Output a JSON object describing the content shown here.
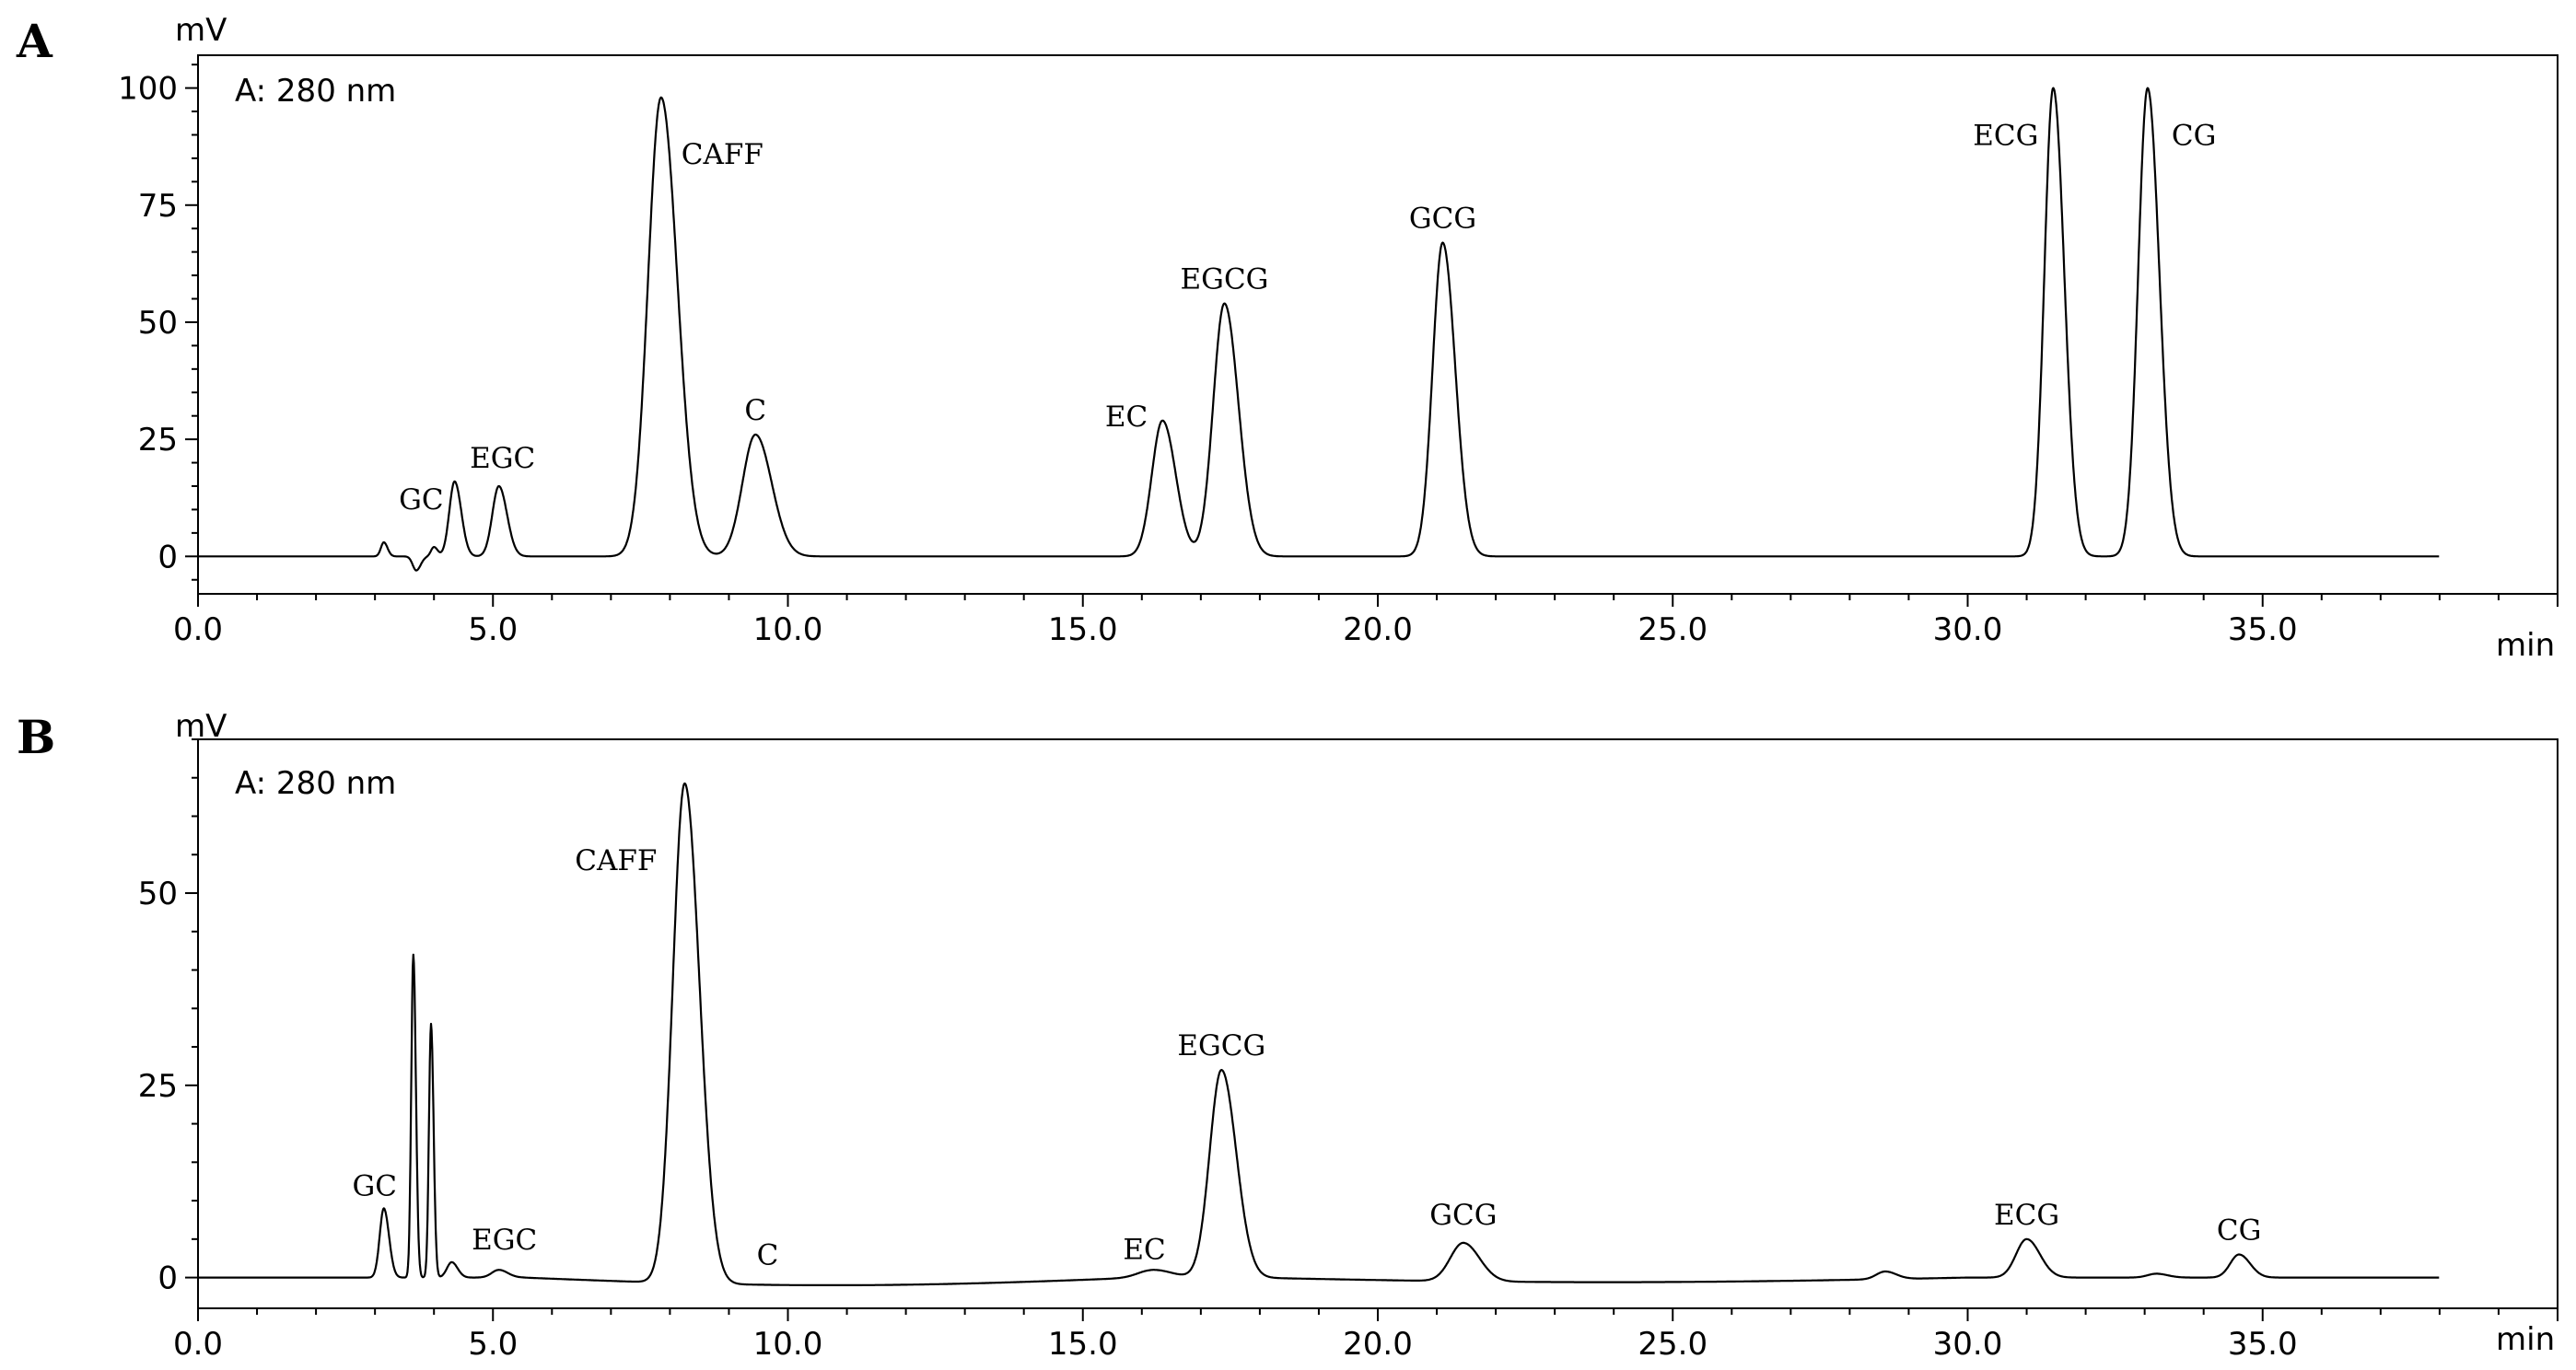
{
  "chart_data": [
    {
      "type": "line",
      "panel": "A",
      "wavelength_label": "A: 280 nm",
      "ylabel": "mV",
      "xlabel": "min",
      "xlim": [
        0,
        40
      ],
      "ylim": [
        -8,
        107
      ],
      "x_ticks": [
        "0.0",
        "5.0",
        "10.0",
        "15.0",
        "20.0",
        "25.0",
        "30.0",
        "35.0"
      ],
      "y_ticks": [
        "0",
        "25",
        "50",
        "75",
        "100"
      ],
      "baseline": 0,
      "peaks": [
        {
          "label": "",
          "x": 3.15,
          "height": 3,
          "width": 0.05
        },
        {
          "label": "",
          "x": 3.7,
          "height": -3,
          "width": 0.06
        },
        {
          "label": "",
          "x": 4.0,
          "height": 2,
          "width": 0.05
        },
        {
          "label": "GC",
          "x": 4.35,
          "height": 16,
          "width": 0.09
        },
        {
          "label": "EGC",
          "x": 5.1,
          "height": 15,
          "width": 0.11
        },
        {
          "label": "CAFF",
          "x": 7.85,
          "height": 98,
          "width": 0.22
        },
        {
          "label": "C",
          "x": 9.45,
          "height": 26,
          "width": 0.22
        },
        {
          "label": "EC",
          "x": 16.35,
          "height": 29,
          "width": 0.18
        },
        {
          "label": "EGCG",
          "x": 17.4,
          "height": 54,
          "width": 0.19
        },
        {
          "label": "GCG",
          "x": 21.1,
          "height": 67,
          "width": 0.17
        },
        {
          "label": "ECG",
          "x": 31.45,
          "height": 100,
          "width": 0.15
        },
        {
          "label": "CG",
          "x": 33.05,
          "height": 100,
          "width": 0.16
        }
      ]
    },
    {
      "type": "line",
      "panel": "B",
      "wavelength_label": "A: 280 nm",
      "ylabel": "mV",
      "xlabel": "min",
      "xlim": [
        0,
        40
      ],
      "ylim": [
        -4,
        70
      ],
      "x_ticks": [
        "0.0",
        "5.0",
        "10.0",
        "15.0",
        "20.0",
        "25.0",
        "30.0",
        "35.0"
      ],
      "y_ticks": [
        "0",
        "25",
        "50"
      ],
      "baseline": 0,
      "peaks": [
        {
          "label": "GC",
          "x": 3.15,
          "height": 9,
          "width": 0.07
        },
        {
          "label": "",
          "x": 3.65,
          "height": 42,
          "width": 0.035
        },
        {
          "label": "",
          "x": 3.95,
          "height": 33,
          "width": 0.035
        },
        {
          "label": "",
          "x": 4.3,
          "height": 2,
          "width": 0.08
        },
        {
          "label": "EGC",
          "x": 5.1,
          "height": 1,
          "width": 0.12
        },
        {
          "label": "CAFF",
          "x": 8.25,
          "height": 65,
          "width": 0.2
        },
        {
          "label": "C",
          "x": 9.5,
          "height": 0,
          "width": 0.2
        },
        {
          "label": "EC",
          "x": 16.2,
          "height": 1,
          "width": 0.25
        },
        {
          "label": "EGCG",
          "x": 17.35,
          "height": 27,
          "width": 0.2
        },
        {
          "label": "GCG",
          "x": 21.45,
          "height": 5,
          "width": 0.22
        },
        {
          "label": "",
          "x": 28.6,
          "height": 1,
          "width": 0.15
        },
        {
          "label": "ECG",
          "x": 31.0,
          "height": 5,
          "width": 0.18
        },
        {
          "label": "",
          "x": 33.2,
          "height": 0.5,
          "width": 0.15
        },
        {
          "label": "CG",
          "x": 34.6,
          "height": 3,
          "width": 0.15
        }
      ]
    }
  ]
}
